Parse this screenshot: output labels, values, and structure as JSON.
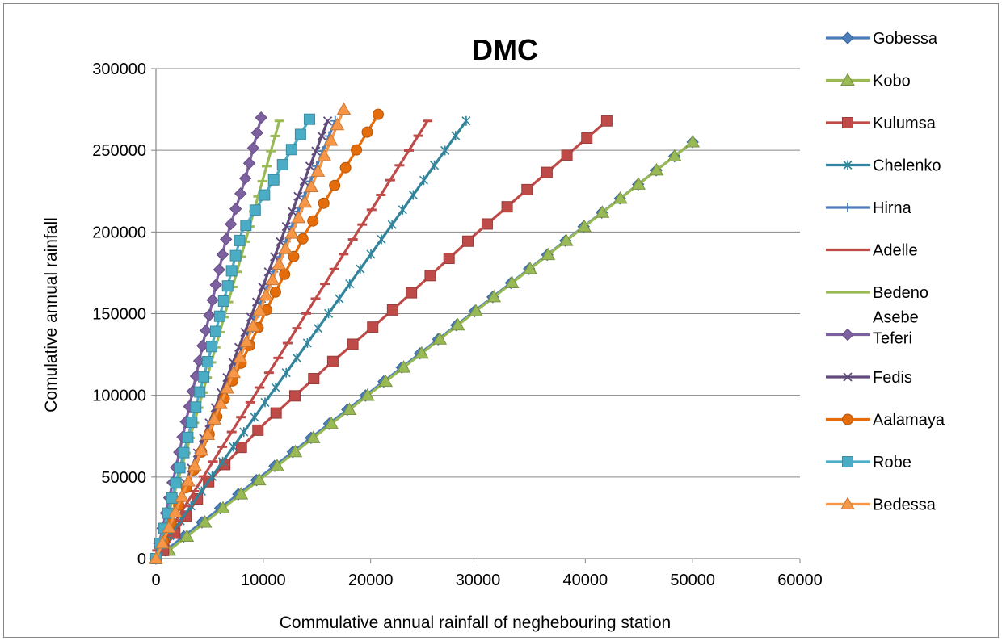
{
  "chart_data": {
    "type": "line",
    "title": "DMC",
    "xlabel": "Commulative annual rainfall of neghebouring station",
    "ylabel": "Comulative annual rainfall",
    "xlim": [
      0,
      60000
    ],
    "ylim": [
      0,
      300000
    ],
    "x_ticks": [
      "0",
      "10000",
      "20000",
      "30000",
      "40000",
      "50000",
      "60000"
    ],
    "y_ticks": [
      "0",
      "50000",
      "100000",
      "150000",
      "200000",
      "250000",
      "300000"
    ],
    "grid": "horizontal",
    "legend_position": "right",
    "series": [
      {
        "name": "Gobessa",
        "color": "#4A7EBB",
        "marker": "diamond",
        "points_x": [
          900,
          50000
        ],
        "points_y": [
          5000,
          255000
        ],
        "n_markers": 30
      },
      {
        "name": "Kobo",
        "color": "#98B954",
        "marker": "triangle",
        "points_x": [
          1200,
          50000
        ],
        "points_y": [
          5000,
          255000
        ],
        "n_markers": 30
      },
      {
        "name": "Kulumsa",
        "color": "#BE4B48",
        "marker": "square",
        "points_x": [
          700,
          5000,
          10000,
          16000,
          22000,
          30000,
          42000
        ],
        "points_y": [
          5000,
          48000,
          82000,
          118000,
          152000,
          200000,
          268000
        ],
        "n_markers": 26
      },
      {
        "name": "Chelenko",
        "color": "#31849B",
        "marker": "star",
        "points_x": [
          300,
          28900
        ],
        "points_y": [
          5000,
          268000
        ],
        "n_markers": 30
      },
      {
        "name": "Hirna",
        "color": "#4A7EBB",
        "marker": "plus",
        "points_x": [
          0,
          16700
        ],
        "points_y": [
          0,
          268000
        ],
        "n_markers": 30
      },
      {
        "name": "Adelle",
        "color": "#BE4B48",
        "marker": "dash",
        "points_x": [
          100,
          25300
        ],
        "points_y": [
          5000,
          268000
        ],
        "n_markers": 30
      },
      {
        "name": "Bedeno",
        "color": "#98B954",
        "marker": "dash",
        "points_x": [
          0,
          11500
        ],
        "points_y": [
          0,
          268000
        ],
        "n_markers": 30
      },
      {
        "name": "Asebe Teferi",
        "color": "#7D60A0",
        "marker": "diamond",
        "points_x": [
          0,
          6500,
          8300,
          9800
        ],
        "points_y": [
          0,
          195000,
          232000,
          270000
        ],
        "n_markers": 30
      },
      {
        "name": "Fedis",
        "color": "#604A7B",
        "marker": "x",
        "points_x": [
          0,
          16000
        ],
        "points_y": [
          0,
          268000
        ],
        "n_markers": 30
      },
      {
        "name": "Aalamaya",
        "color": "#E46C0A",
        "marker": "circle",
        "points_x": [
          0,
          6500,
          10500,
          14000,
          20700
        ],
        "points_y": [
          0,
          100000,
          155000,
          200000,
          272000
        ],
        "n_markers": 26
      },
      {
        "name": "Robe",
        "color": "#4BACC6",
        "marker": "square",
        "points_x": [
          0,
          8000,
          10800,
          14300
        ],
        "points_y": [
          0,
          200000,
          230000,
          269000
        ],
        "n_markers": 30
      },
      {
        "name": "Bedessa",
        "color": "#F79646",
        "marker": "triangle",
        "points_x": [
          0,
          17500
        ],
        "points_y": [
          0,
          275000
        ],
        "n_markers": 30
      }
    ]
  }
}
